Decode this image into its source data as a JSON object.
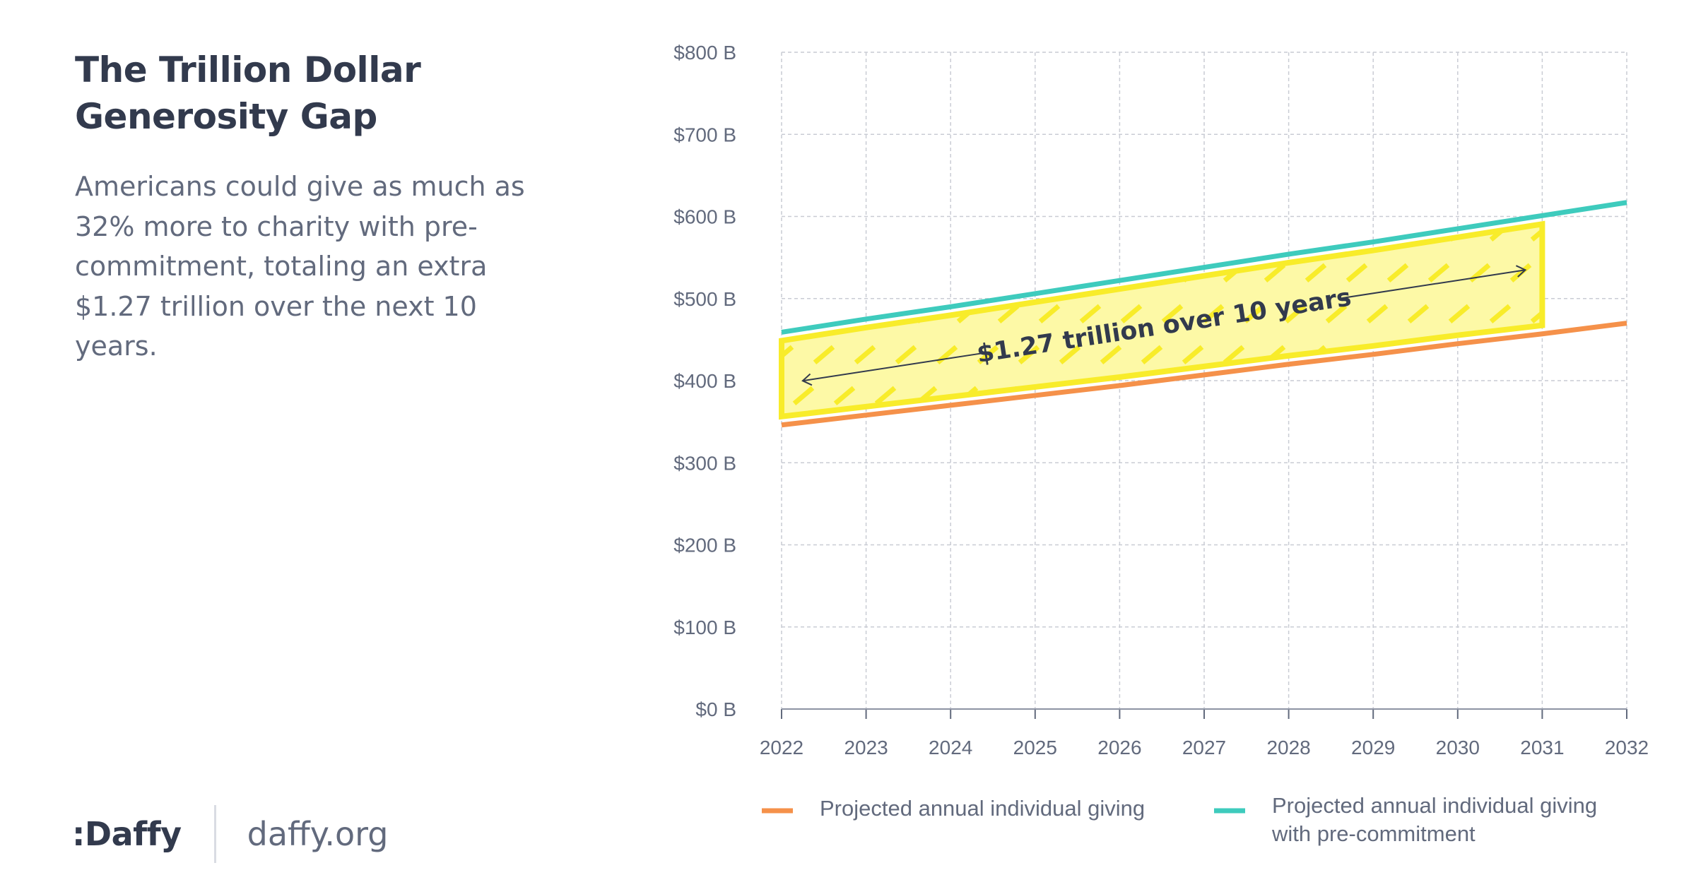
{
  "header": {
    "title": "The Trillion Dollar Generosity Gap",
    "subtitle": "Americans could give as much as 32% more to charity with pre-commitment, totaling an extra $1.27 trillion over the next 10 years."
  },
  "footer": {
    "logo": ":Daffy",
    "website": "daffy.org"
  },
  "chart_data": {
    "type": "line",
    "x": [
      2022,
      2023,
      2024,
      2025,
      2026,
      2027,
      2028,
      2029,
      2030,
      2031,
      2032
    ],
    "x_tick_labels": [
      "2022",
      "2023",
      "2024",
      "2025",
      "2026",
      "2027",
      "2028",
      "2029",
      "2030",
      "2031",
      "2032"
    ],
    "ylim": [
      0,
      800
    ],
    "y_ticks": [
      0,
      100,
      200,
      300,
      400,
      500,
      600,
      700,
      800
    ],
    "y_tick_labels": [
      "$0 B",
      "$100 B",
      "$200 B",
      "$300 B",
      "$400 B",
      "$500 B",
      "$600 B",
      "$700 B",
      "$800 B"
    ],
    "grid": true,
    "series": [
      {
        "name": "Projected annual individual giving",
        "color": "#f5914a",
        "values": [
          346,
          358,
          370,
          382,
          394,
          407,
          420,
          432,
          445,
          457,
          470
        ]
      },
      {
        "name": "Projected annual individual giving with pre-commitment",
        "color": "#3ecbbd",
        "values": [
          459,
          475,
          490,
          506,
          522,
          538,
          554,
          569,
          585,
          601,
          617
        ]
      }
    ],
    "shaded_region": {
      "x_range": [
        2022,
        2031
      ],
      "fill": "#fdf9a6",
      "stroke": "#f8ec2a"
    },
    "annotation": {
      "text": "$1.27 trillion over 10 years",
      "x_range": [
        2022.3,
        2030.8
      ]
    },
    "legend": {
      "placement": "bottom",
      "entries": [
        {
          "lines": [
            "Projected annual individual giving"
          ],
          "color": "#f5914a"
        },
        {
          "lines": [
            "Projected annual individual giving",
            "with pre-commitment"
          ],
          "color": "#3ecbbd"
        }
      ]
    }
  }
}
